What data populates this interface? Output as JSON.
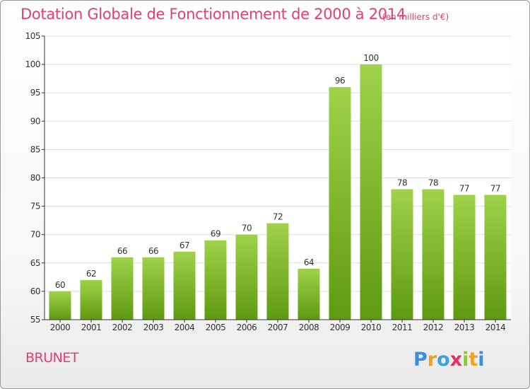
{
  "header": {
    "title": "Dotation Globale de Fonctionnement de 2000 à 2014",
    "unit": "(en milliers d'€)"
  },
  "footer": {
    "commune": "BRUNET",
    "logo_text": "Proxiti"
  },
  "colors": {
    "title": "#e0426f",
    "bar_light": "#9fd24a",
    "bar_dark": "#5f9a12",
    "grid": "#dddddd",
    "axis": "#333333"
  },
  "chart_data": {
    "type": "bar",
    "categories": [
      "2000",
      "2001",
      "2002",
      "2003",
      "2004",
      "2005",
      "2006",
      "2007",
      "2008",
      "2009",
      "2010",
      "2011",
      "2012",
      "2013",
      "2014"
    ],
    "values": [
      60,
      62,
      66,
      66,
      67,
      69,
      70,
      72,
      64,
      96,
      100,
      78,
      78,
      77,
      77
    ],
    "ylim": [
      55,
      105
    ],
    "yticks": [
      55,
      60,
      65,
      70,
      75,
      80,
      85,
      90,
      95,
      100,
      105
    ],
    "grid": true,
    "data_labels": true
  }
}
